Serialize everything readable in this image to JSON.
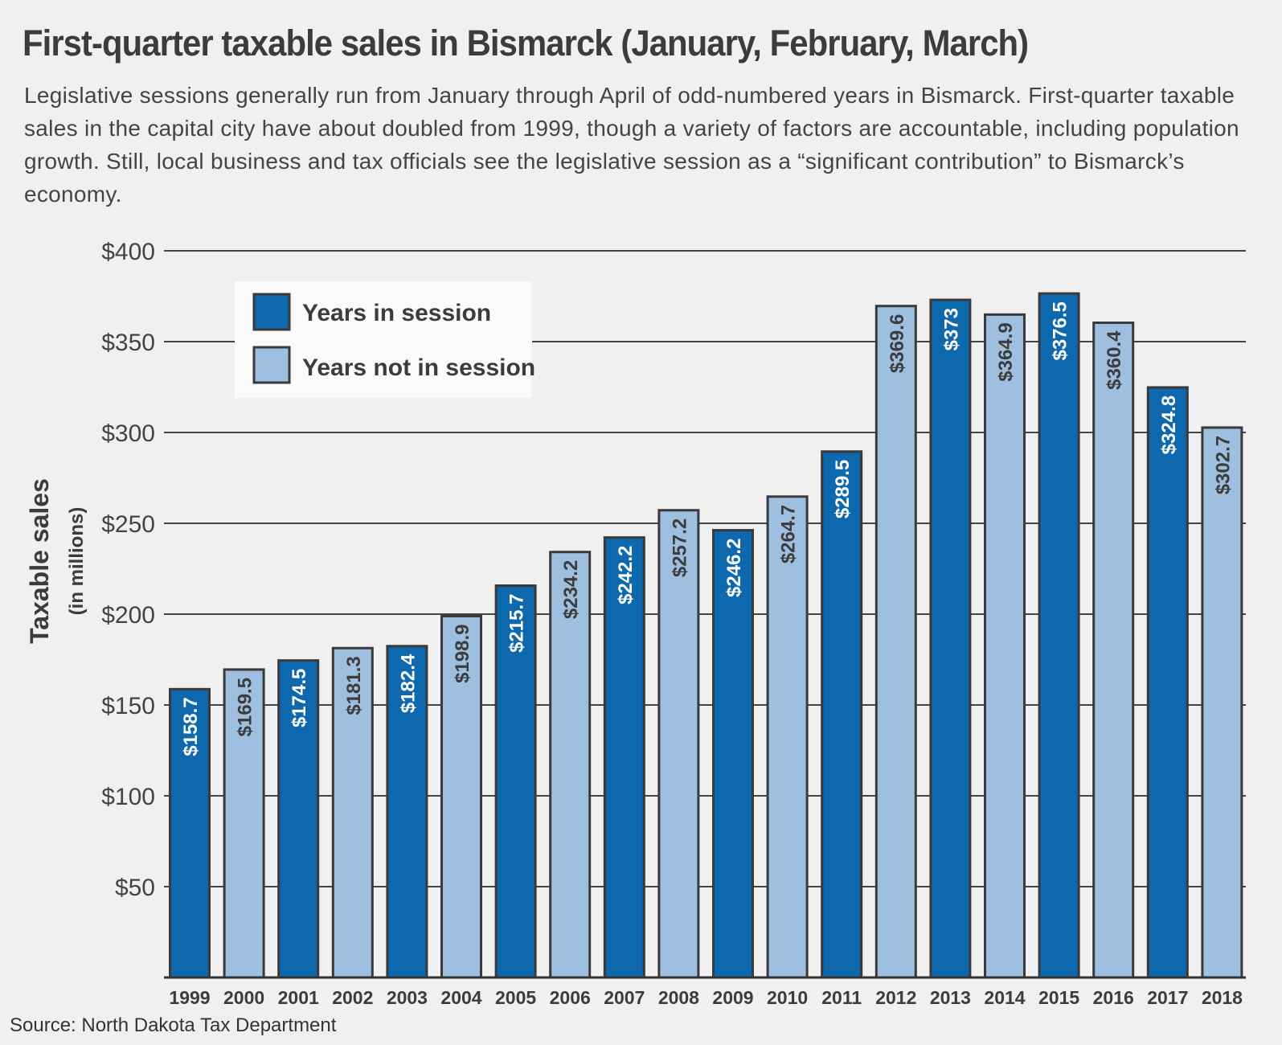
{
  "chart_data": {
    "type": "bar",
    "title": "First-quarter taxable sales in Bismarck (January, February, March)",
    "subtitle": "Legislative sessions generally run from January through April of odd-numbered years in Bismarck. First-quarter taxable sales in the capital city have about doubled from 1999, though a variety of factors are accountable, including population growth. Still, local business and tax officials see the legislative session as a “significant contribution” to Bismarck’s economy.",
    "ylabel": "Taxable sales",
    "ylabel_sub": "(in millions)",
    "xlabel": "",
    "ylim": [
      0,
      400
    ],
    "y_ticks": [
      50,
      100,
      150,
      200,
      250,
      300,
      350,
      400
    ],
    "y_tick_labels": [
      "$50",
      "$100",
      "$150",
      "$200",
      "$250",
      "$300",
      "$350",
      "$400"
    ],
    "grid": true,
    "categories": [
      "1999",
      "2000",
      "2001",
      "2002",
      "2003",
      "2004",
      "2005",
      "2006",
      "2007",
      "2008",
      "2009",
      "2010",
      "2011",
      "2012",
      "2013",
      "2014",
      "2015",
      "2016",
      "2017",
      "2018"
    ],
    "values": [
      158.7,
      169.5,
      174.5,
      181.3,
      182.4,
      198.9,
      215.7,
      234.2,
      242.2,
      257.2,
      246.2,
      264.7,
      289.5,
      369.6,
      373,
      364.9,
      376.5,
      360.4,
      324.8,
      302.7
    ],
    "value_labels": [
      "$158.7",
      "$169.5",
      "$174.5",
      "$181.3",
      "$182.4",
      "$198.9",
      "$215.7",
      "$234.2",
      "$242.2",
      "$257.2",
      "$246.2",
      "$264.7",
      "$289.5",
      "$369.6",
      "$373",
      "$364.9",
      "$376.5",
      "$360.4",
      "$324.8",
      "$302.7"
    ],
    "in_session": [
      true,
      false,
      true,
      false,
      true,
      false,
      true,
      false,
      true,
      false,
      true,
      false,
      true,
      false,
      true,
      false,
      true,
      false,
      true,
      false
    ],
    "legend": {
      "placement": "top-left",
      "entries": [
        {
          "label": "Years in session",
          "color": "#0d68ad"
        },
        {
          "label": "Years not in session",
          "color": "#9fbfe0"
        }
      ]
    },
    "colors": {
      "in_session": "#0d68ad",
      "not_in_session": "#9fbfe0",
      "bar_outline": "#3a3a3a",
      "grid": "#444444",
      "label_on_dark": "#ffffff",
      "label_on_light": "#3c3c3c",
      "legend_bg": "#fafafa"
    },
    "source": "Source: North Dakota Tax Department"
  }
}
